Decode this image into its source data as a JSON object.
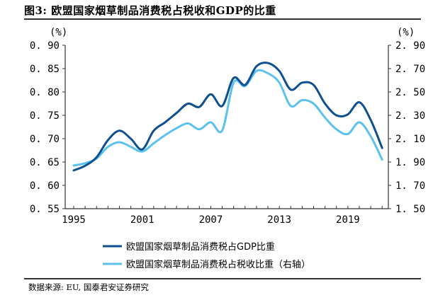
{
  "title": "图3: 欧盟国家烟草制品消费税占税收和GDP的比重",
  "source": "数据来源: EU, 国泰君安证券研究",
  "chart_data": {
    "type": "line",
    "title": "图3: 欧盟国家烟草制品消费税占税收和GDP的比重",
    "x": [
      1995,
      1996,
      1997,
      1998,
      1999,
      2000,
      2001,
      2002,
      2003,
      2004,
      2005,
      2006,
      2007,
      2008,
      2009,
      2010,
      2011,
      2012,
      2013,
      2014,
      2015,
      2016,
      2017,
      2018,
      2019,
      2020,
      2021,
      2022
    ],
    "x_tick_labels": [
      "1995",
      "2001",
      "2007",
      "2013",
      "2019"
    ],
    "xlim": [
      1995,
      2022
    ],
    "left_axis": {
      "unit_label": "(%)",
      "ylim": [
        0.55,
        0.9
      ],
      "ticks": [
        "0.55",
        "0.60",
        "0.65",
        "0.70",
        "0.75",
        "0.80",
        "0.85",
        "0.90"
      ]
    },
    "right_axis": {
      "unit_label": "(%)",
      "ylim": [
        1.5,
        2.9
      ],
      "ticks": [
        "1.50",
        "1.70",
        "1.90",
        "2.10",
        "2.30",
        "2.50",
        "2.70",
        "2.90"
      ]
    },
    "series": [
      {
        "name": "欧盟国家烟草制品消费税占GDP比重",
        "axis": "left",
        "color": "#0d4f8f",
        "values": [
          0.632,
          0.642,
          0.66,
          0.697,
          0.717,
          0.7,
          0.677,
          0.717,
          0.735,
          0.755,
          0.775,
          0.768,
          0.795,
          0.77,
          0.83,
          0.815,
          0.855,
          0.862,
          0.845,
          0.805,
          0.82,
          0.815,
          0.775,
          0.75,
          0.752,
          0.778,
          0.74,
          0.68
        ]
      },
      {
        "name": "欧盟国家烟草制品消费税占税收比重（右轴）",
        "axis": "right",
        "color": "#5bc2ee",
        "values": [
          1.87,
          1.89,
          1.93,
          2.03,
          2.07,
          2.03,
          1.99,
          2.06,
          2.13,
          2.19,
          2.23,
          2.18,
          2.24,
          2.17,
          2.58,
          2.55,
          2.68,
          2.66,
          2.58,
          2.38,
          2.43,
          2.4,
          2.28,
          2.18,
          2.14,
          2.24,
          2.12,
          1.92
        ]
      }
    ],
    "legend": "bottom-center",
    "grid": false
  }
}
